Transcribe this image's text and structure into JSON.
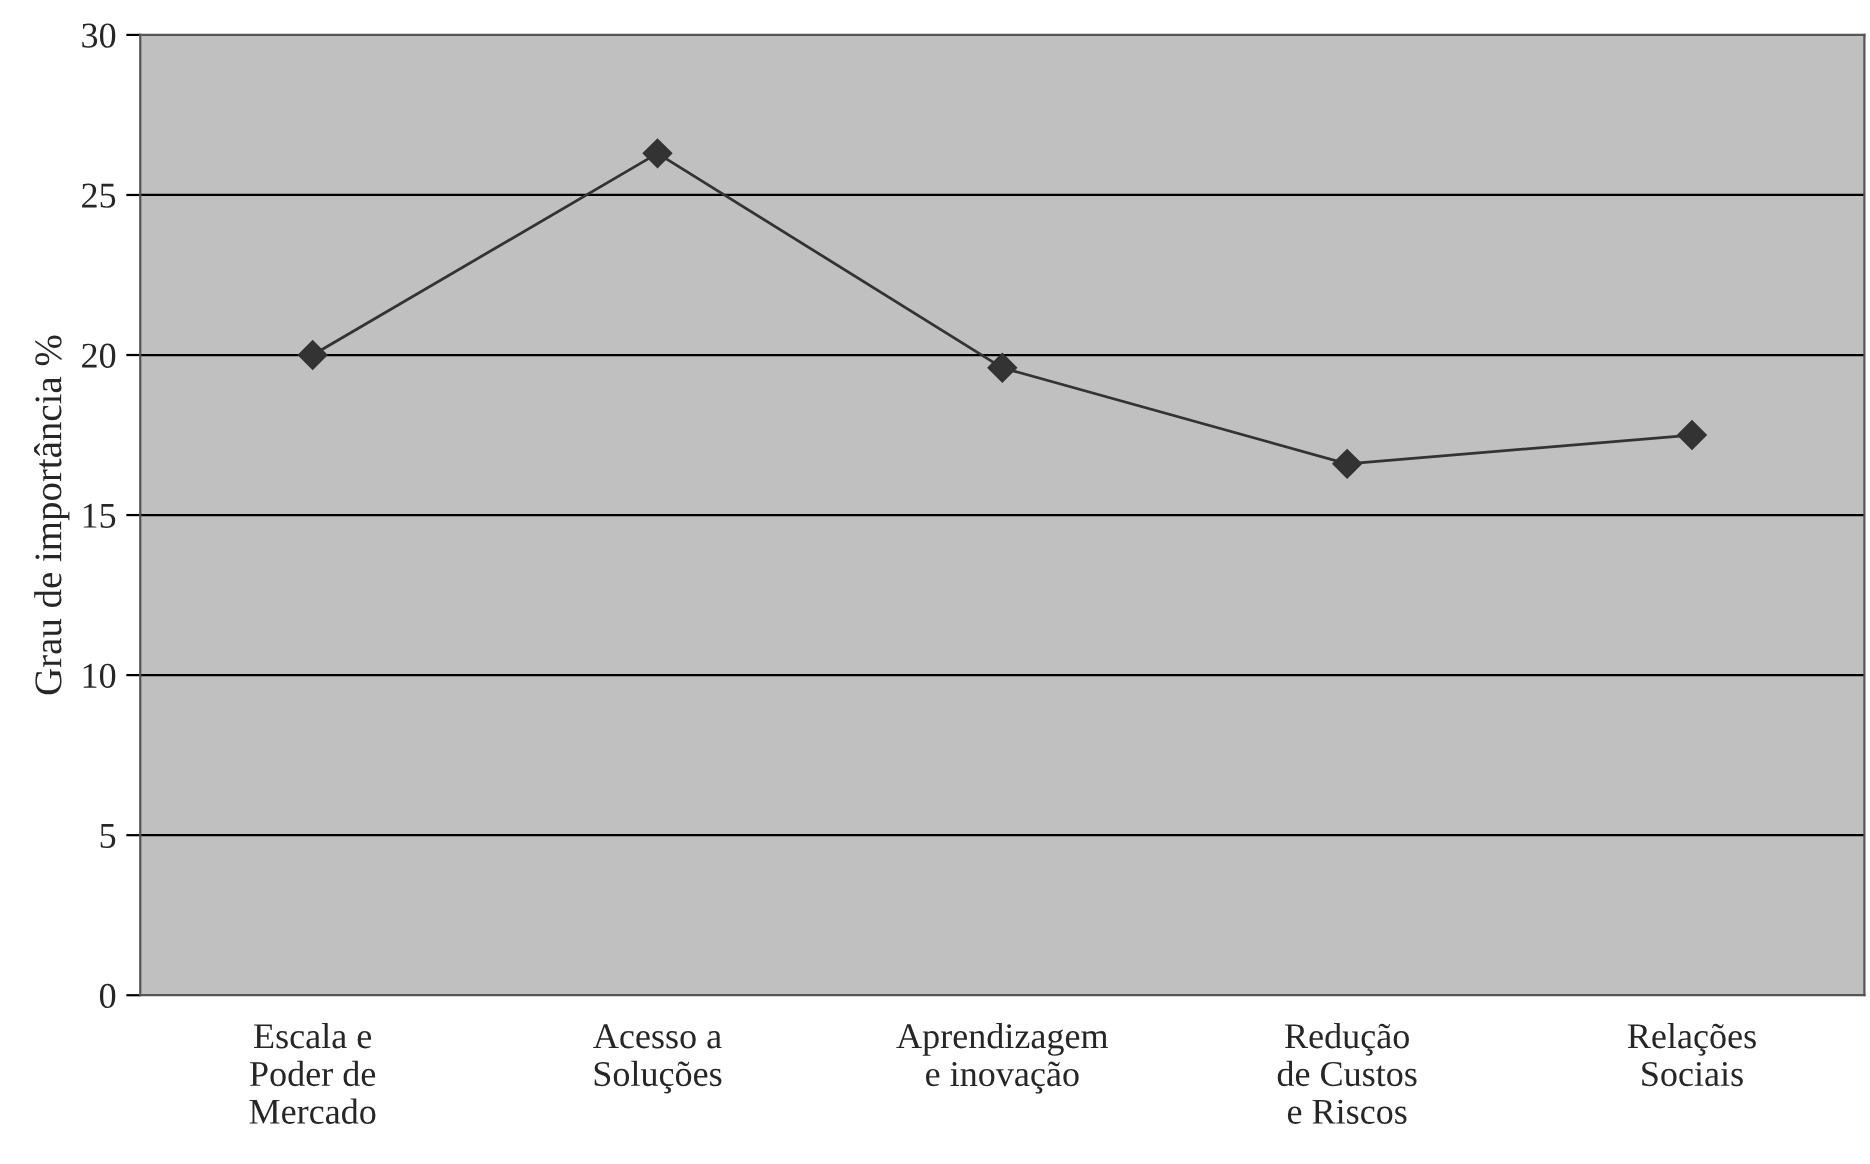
{
  "chart_data": {
    "type": "line",
    "ylabel": "Grau de importância %",
    "categories": [
      "Escala e\nPoder de\nMercado",
      "Acesso a\nSoluções",
      "Aprendizagem\ne inovação",
      "Redução\nde Custos\ne Riscos",
      "Relações\nSociais"
    ],
    "series": [
      {
        "color": "#333333",
        "values": [
          20,
          26.3,
          19.6,
          16.6,
          17.5
        ]
      }
    ],
    "ylim": [
      0,
      30
    ],
    "yticks": [
      0,
      5,
      10,
      15,
      20,
      25,
      30
    ],
    "grid": "y",
    "legend": false,
    "marker": "diamond",
    "line_style": "solid"
  }
}
